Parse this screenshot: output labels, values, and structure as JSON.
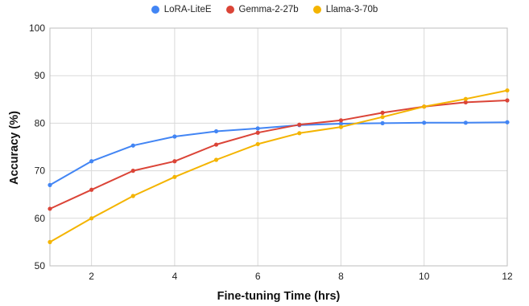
{
  "chart_data": {
    "type": "line",
    "title": "",
    "xlabel": "Fine-tuning Time (hrs)",
    "ylabel": "Accuracy (%)",
    "xlim": [
      1,
      12
    ],
    "ylim": [
      50,
      100
    ],
    "x_ticks": [
      2,
      4,
      6,
      8,
      10,
      12
    ],
    "y_ticks": [
      50,
      60,
      70,
      80,
      90,
      100
    ],
    "grid": true,
    "legend_position": "top-center",
    "x": [
      1,
      2,
      3,
      4,
      5,
      6,
      7,
      8,
      9,
      10,
      11,
      12
    ],
    "series": [
      {
        "name": "LoRA-LiteE",
        "color": "#4285f4",
        "values": [
          67,
          72,
          75.3,
          77.2,
          78.3,
          78.9,
          79.6,
          79.9,
          80.0,
          80.1,
          80.1,
          80.2
        ]
      },
      {
        "name": "Gemma-2-27b",
        "color": "#db4437",
        "values": [
          62,
          66,
          70,
          72,
          75.5,
          78,
          79.7,
          80.6,
          82.2,
          83.5,
          84.4,
          84.8
        ]
      },
      {
        "name": "Llama-3-70b",
        "color": "#f4b400",
        "values": [
          55,
          60,
          64.7,
          68.7,
          72.3,
          75.6,
          77.9,
          79.2,
          81.3,
          83.5,
          85.1,
          86.9
        ]
      }
    ]
  }
}
